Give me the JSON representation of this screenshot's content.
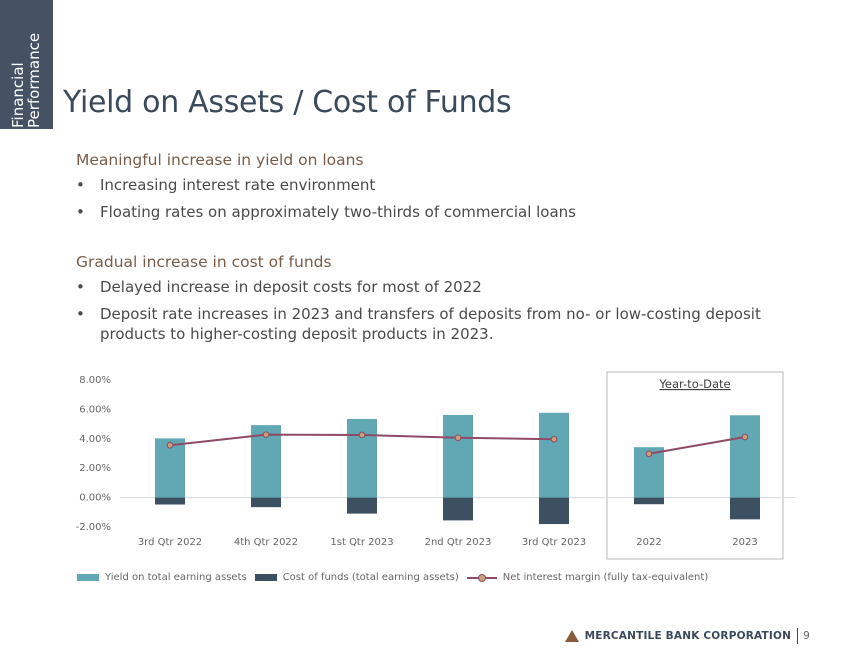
{
  "section_tab": {
    "line1": "Financial",
    "line2": "Performance"
  },
  "title": "Yield on Assets / Cost of Funds",
  "blocks": [
    {
      "heading": "Meaningful increase in yield on loans",
      "bullets": [
        "Increasing interest rate environment",
        "Floating rates on approximately two-thirds of commercial loans"
      ]
    },
    {
      "heading": "Gradual increase in cost of funds",
      "bullets": [
        "Delayed increase in deposit costs for most of 2022",
        "Deposit rate increases in 2023 and transfers of deposits from no- or low-costing deposit products to higher-costing deposit products in 2023."
      ]
    }
  ],
  "bullet_char": "•",
  "chart_data": {
    "type": "bar",
    "categories": [
      "3rd Qtr 2022",
      "4th Qtr 2022",
      "1st Qtr 2023",
      "2nd Qtr 2023",
      "3rd Qtr 2023",
      "2022",
      "2023"
    ],
    "series": [
      {
        "name": "Yield on total earning assets",
        "kind": "bar",
        "color": "#62a8b4",
        "values": [
          4.03,
          4.93,
          5.35,
          5.62,
          5.77,
          3.43,
          5.6
        ]
      },
      {
        "name": "Cost of funds (total earning assets)",
        "kind": "bar",
        "color": "#3d5061",
        "values": [
          -0.47,
          -0.65,
          -1.09,
          -1.55,
          -1.8,
          -0.45,
          -1.48
        ]
      },
      {
        "name": "Net interest margin (fully tax-equivalent)",
        "kind": "line",
        "color": "#8e4a66",
        "marker_color": "#c9a27a",
        "values": [
          3.56,
          4.28,
          4.26,
          4.07,
          3.97,
          2.98,
          4.12
        ]
      }
    ],
    "ylim": [
      -2.0,
      8.0
    ],
    "yticks": [
      "-2.00%",
      "0.00%",
      "2.00%",
      "4.00%",
      "6.00%",
      "8.00%"
    ],
    "ytick_values": [
      -2,
      0,
      2,
      4,
      6,
      8
    ],
    "line_segments": [
      [
        0,
        4
      ],
      [
        5,
        6
      ]
    ],
    "annotation": "Year-to-Date",
    "legend_position": "bottom"
  },
  "footer": {
    "company": "MERCANTILE BANK CORPORATION",
    "page": "9"
  }
}
